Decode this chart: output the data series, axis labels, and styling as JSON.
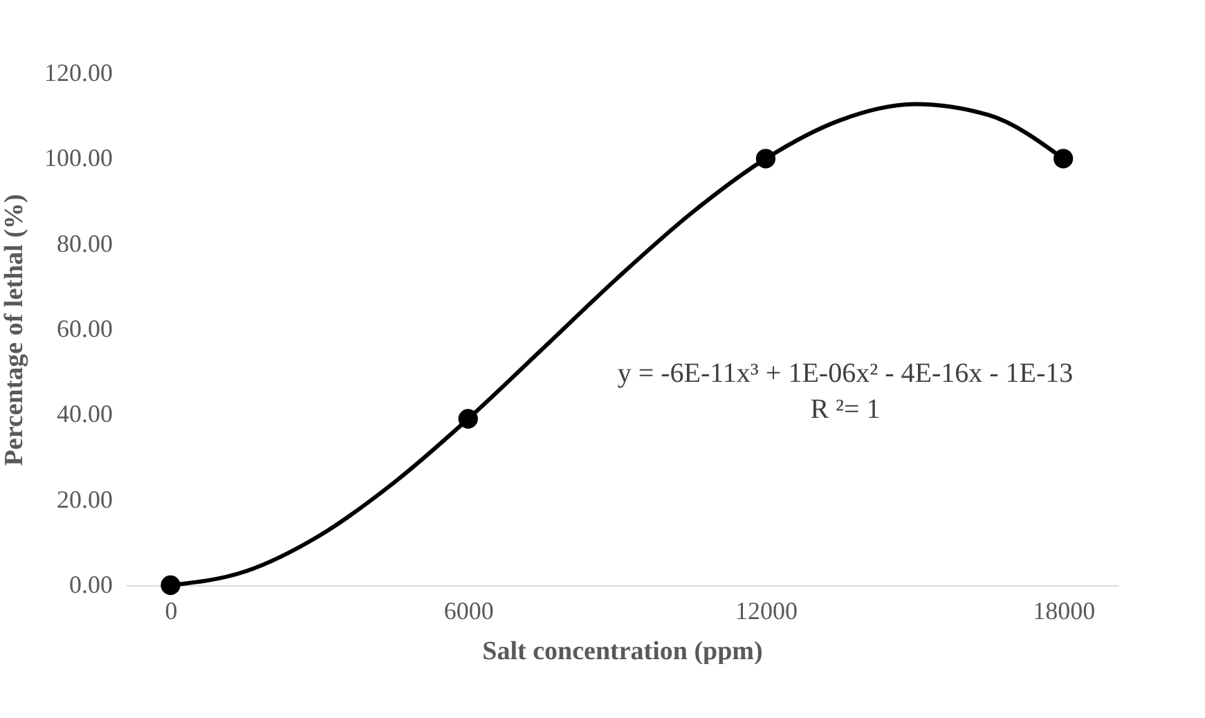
{
  "chart_data": {
    "type": "scatter",
    "xlabel": "Salt concentration (ppm)",
    "ylabel": "Percentage of lethal (%)",
    "xlim": [
      -900,
      19100
    ],
    "xticks": [
      0,
      6000,
      12000,
      18000
    ],
    "ylim": [
      0,
      120
    ],
    "yticks": [
      {
        "value": 0,
        "label": "0.00"
      },
      {
        "value": 20,
        "label": "20.00"
      },
      {
        "value": 40,
        "label": "40.00"
      },
      {
        "value": 60,
        "label": "60.00"
      },
      {
        "value": 80,
        "label": "80.00"
      },
      {
        "value": 100,
        "label": "100.00"
      },
      {
        "value": 120,
        "label": "120.00"
      }
    ],
    "marker": "circle",
    "x": [
      0,
      6000,
      12000,
      18000
    ],
    "series": [
      {
        "color": "#000000",
        "values": [
          0,
          39,
          100,
          100
        ]
      },
      {
        "type": "line",
        "color": "#000000",
        "line_style": "solid",
        "marker": "none",
        "x": [
          0,
          1500,
          3000,
          4500,
          6000,
          7500,
          9000,
          10500,
          12000,
          13500,
          15000,
          16500,
          18000
        ],
        "values": [
          0,
          3.2,
          11.6,
          24.0,
          39.0,
          55.4,
          71.9,
          87.2,
          100.0,
          109.0,
          112.8,
          110.2,
          100.0
        ]
      }
    ],
    "annotations": [
      "y = -6E-11x³ + 1E-06x² - 4E-16x - 1E-13",
      "R ²= 1"
    ]
  }
}
